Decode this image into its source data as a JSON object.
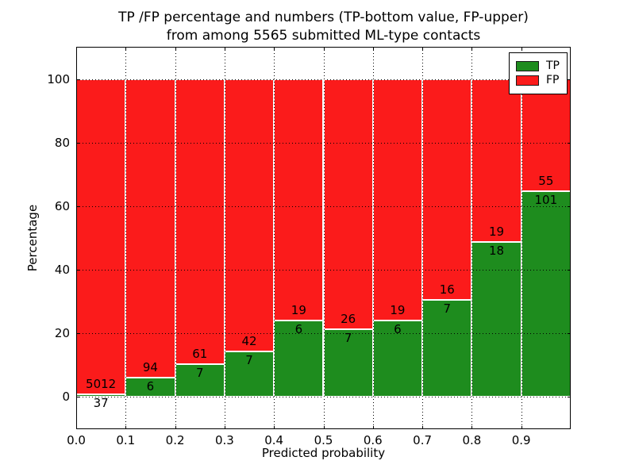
{
  "chart_data": {
    "type": "bar",
    "stacked": true,
    "title_lines": [
      "TP /FP percentage and numbers (TP-bottom value, FP-upper)",
      "from among 5565 submitted ML-type contacts"
    ],
    "xlabel": "Predicted probability",
    "ylabel": "Percentage",
    "total_submitted_contacts": 5565,
    "bins": [
      "0.0-0.1",
      "0.1-0.2",
      "0.2-0.3",
      "0.3-0.4",
      "0.4-0.5",
      "0.5-0.6",
      "0.6-0.7",
      "0.7-0.8",
      "0.8-0.9",
      "0.9-1.0"
    ],
    "series": [
      {
        "name": "TP",
        "color": "#1e8c1e",
        "counts": [
          37,
          6,
          7,
          7,
          6,
          7,
          6,
          7,
          18,
          101
        ]
      },
      {
        "name": "FP",
        "color": "#fb1b1b",
        "counts": [
          5012,
          94,
          61,
          42,
          19,
          26,
          19,
          16,
          19,
          55
        ]
      }
    ],
    "tp_percent": [
      0.73,
      6.0,
      10.29,
      14.29,
      24.0,
      21.21,
      24.0,
      30.43,
      48.65,
      64.74
    ],
    "units": "percent of bin total; each bar stacks TP (bottom, green) and FP (top, red) to 100%",
    "ylim": [
      -10,
      110
    ],
    "xlim": [
      0,
      1
    ],
    "yticks": [
      0,
      20,
      40,
      60,
      80,
      100
    ],
    "xtick_labels": [
      "0.0",
      "0.1",
      "0.2",
      "0.3",
      "0.4",
      "0.5",
      "0.6",
      "0.7",
      "0.8",
      "0.9"
    ],
    "grid": true,
    "legend": {
      "position": "upper right",
      "entries": [
        {
          "label": "TP",
          "color": "#1e8c1e"
        },
        {
          "label": "FP",
          "color": "#fb1b1b"
        }
      ]
    }
  }
}
